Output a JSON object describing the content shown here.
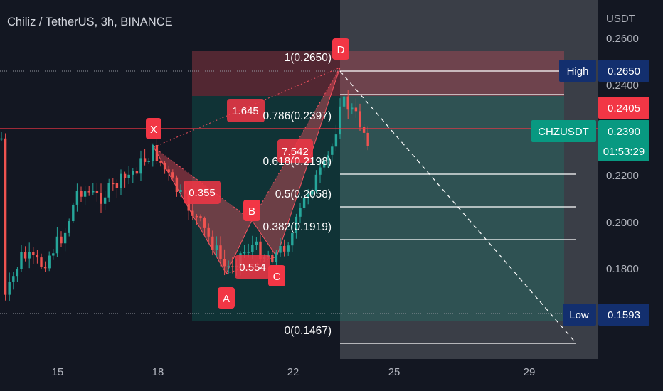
{
  "header": {
    "title": "Chiliz / TetherUS, 3h, BINANCE"
  },
  "price_axis": {
    "currency": "USDT",
    "ticks": [
      "0.2600",
      "0.2400",
      "0.2200",
      "0.2000",
      "0.1800"
    ]
  },
  "time_axis": {
    "ticks": [
      "15",
      "18",
      "22",
      "25",
      "29"
    ]
  },
  "price_labels": {
    "high_label": "High",
    "high_value": "0.2650",
    "last_red": "0.2405",
    "symbol": "CHZUSDT",
    "symbol_price": "0.2390",
    "countdown": "01:53:29",
    "low_label": "Low",
    "low_value": "0.1593"
  },
  "pattern": {
    "points": {
      "X": "X",
      "A": "A",
      "B": "B",
      "C": "C",
      "D": "D"
    },
    "ratios": {
      "xd": "1.645",
      "ab": "0.355",
      "bc": "0.554",
      "cd": "7.542"
    }
  },
  "fib": {
    "lvl_100": "1(0.2650)",
    "lvl_786": "0.786(0.2397)",
    "lvl_618": "0.618(0.2198)",
    "lvl_50": "0.5(0.2058)",
    "lvl_382": "0.382(0.1919)",
    "lvl_0": "0(0.1467)"
  },
  "colors": {
    "background": "#131722",
    "up": "#26a69a",
    "down": "#ef5350",
    "pattern_fill": "#f7525f",
    "label_red": "#f23645",
    "label_navy": "#132f6e",
    "label_teal": "#089981"
  },
  "chart_data": {
    "type": "candlestick",
    "title": "Chiliz / TetherUS, 3h, BINANCE",
    "x_ticks": [
      "15",
      "18",
      "22",
      "25",
      "29"
    ],
    "y_axis_label": "USDT",
    "y_ticks": [
      0.26,
      0.24,
      0.22,
      0.2,
      0.18
    ],
    "ylim": [
      0.142,
      0.285
    ],
    "harmonic_pattern": {
      "points": [
        {
          "name": "X",
          "price": 0.233
        },
        {
          "name": "A",
          "price": 0.178
        },
        {
          "name": "B",
          "price": 0.1935
        },
        {
          "name": "C",
          "price": 0.1845
        },
        {
          "name": "D",
          "price": 0.265
        }
      ],
      "ratios": {
        "XB": 0.355,
        "AC": 0.554,
        "BD": 7.542,
        "XD": 1.645
      }
    },
    "fib_levels": [
      {
        "level": 1.0,
        "price": 0.265
      },
      {
        "level": 0.786,
        "price": 0.2397
      },
      {
        "level": 0.618,
        "price": 0.2198
      },
      {
        "level": 0.5,
        "price": 0.2058
      },
      {
        "level": 0.382,
        "price": 0.1919
      },
      {
        "level": 0.0,
        "price": 0.1467
      }
    ],
    "high": 0.265,
    "low": 0.1593,
    "last_price": 0.239
  }
}
